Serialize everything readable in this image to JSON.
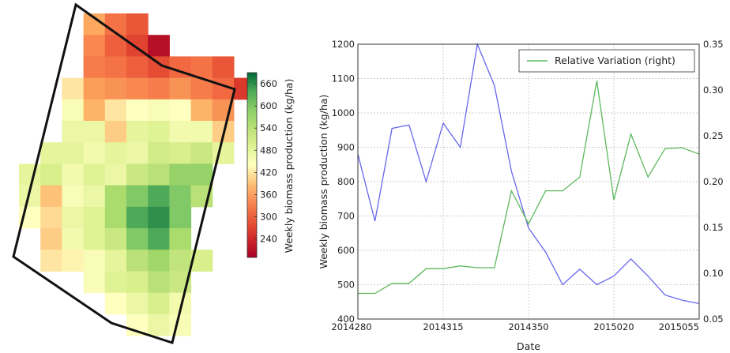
{
  "chart_data": [
    {
      "type": "heatmap",
      "colorbar": {
        "label": "Weekly biomass production (kg/ha)",
        "ticks": [
          240,
          300,
          360,
          420,
          480,
          540,
          600,
          660
        ],
        "range": [
          190,
          690
        ],
        "colormap": "red-yellow-green"
      },
      "grid_rows": [
        [
          null,
          null,
          null,
          370,
          320,
          290,
          null,
          null,
          null,
          null,
          null
        ],
        [
          null,
          null,
          null,
          340,
          300,
          270,
          210,
          null,
          null,
          null,
          null
        ],
        [
          null,
          null,
          null,
          330,
          320,
          300,
          280,
          310,
          320,
          290,
          null
        ],
        [
          null,
          null,
          420,
          360,
          350,
          340,
          330,
          350,
          330,
          310,
          260
        ],
        [
          null,
          null,
          450,
          380,
          420,
          440,
          450,
          440,
          380,
          350,
          null
        ],
        [
          null,
          null,
          470,
          470,
          400,
          480,
          490,
          460,
          460,
          400,
          null
        ],
        [
          null,
          480,
          480,
          460,
          480,
          470,
          510,
          500,
          520,
          480,
          null
        ],
        [
          480,
          500,
          460,
          490,
          470,
          520,
          540,
          580,
          580,
          null,
          null
        ],
        [
          470,
          390,
          450,
          470,
          560,
          600,
          640,
          600,
          540,
          null,
          null
        ],
        [
          440,
          410,
          470,
          490,
          560,
          640,
          660,
          600,
          null,
          null,
          null
        ],
        [
          null,
          400,
          460,
          490,
          520,
          600,
          640,
          560,
          null,
          null,
          null
        ],
        [
          null,
          420,
          430,
          450,
          480,
          540,
          570,
          530,
          500,
          null,
          null
        ],
        [
          null,
          null,
          null,
          450,
          490,
          500,
          540,
          520,
          null,
          null,
          null
        ],
        [
          null,
          null,
          null,
          null,
          440,
          470,
          500,
          460,
          null,
          null,
          null
        ],
        [
          null,
          null,
          null,
          null,
          null,
          440,
          470,
          450,
          null,
          null,
          null
        ]
      ]
    },
    {
      "type": "line",
      "xlabel": "Date",
      "ylabel": "Weekly biomass production (kg/ha)",
      "xlim": [
        2014280,
        2015055
      ],
      "x_ticks": [
        "2014280",
        "2014315",
        "2014350",
        "2015020",
        "2015055"
      ],
      "ylim_left": [
        400,
        1200
      ],
      "y_ticks_left": [
        400,
        500,
        600,
        700,
        800,
        900,
        1000,
        1100,
        1200
      ],
      "ylim_right": [
        0.05,
        0.35
      ],
      "y_ticks_right": [
        "0.05",
        "0.10",
        "0.15",
        "0.20",
        "0.25",
        "0.30",
        "0.35"
      ],
      "grid": true,
      "legend": {
        "position": "top-right",
        "entries": [
          "Relative Variation (right)"
        ]
      },
      "series": [
        {
          "axis": "left",
          "color": "#6666ee",
          "points": [
            [
              0,
              880
            ],
            [
              1,
              685
            ],
            [
              2,
              955
            ],
            [
              3,
              965
            ],
            [
              4,
              800
            ],
            [
              5,
              970
            ],
            [
              6,
              900
            ],
            [
              7,
              1200
            ],
            [
              8,
              1080
            ],
            [
              9,
              830
            ],
            [
              10,
              665
            ],
            [
              11,
              595
            ],
            [
              12,
              500
            ],
            [
              13,
              545
            ],
            [
              14,
              500
            ],
            [
              15,
              525
            ],
            [
              16,
              575
            ],
            [
              17,
              525
            ],
            [
              18,
              470
            ],
            [
              19,
              455
            ],
            [
              20,
              445
            ]
          ]
        },
        {
          "name": "Relative Variation (right)",
          "axis": "right",
          "color": "#5cb85c",
          "points": [
            [
              0,
              0.078
            ],
            [
              1,
              0.078
            ],
            [
              2,
              0.089
            ],
            [
              3,
              0.089
            ],
            [
              4,
              0.105
            ],
            [
              5,
              0.105
            ],
            [
              6,
              0.108
            ],
            [
              7,
              0.106
            ],
            [
              8,
              0.106
            ],
            [
              9,
              0.19
            ],
            [
              10,
              0.154
            ],
            [
              11,
              0.19
            ],
            [
              12,
              0.19
            ],
            [
              13,
              0.205
            ],
            [
              14,
              0.31
            ],
            [
              15,
              0.18
            ],
            [
              16,
              0.252
            ],
            [
              17,
              0.205
            ],
            [
              18,
              0.236
            ],
            [
              19,
              0.237
            ],
            [
              20,
              0.23
            ]
          ]
        }
      ]
    }
  ]
}
